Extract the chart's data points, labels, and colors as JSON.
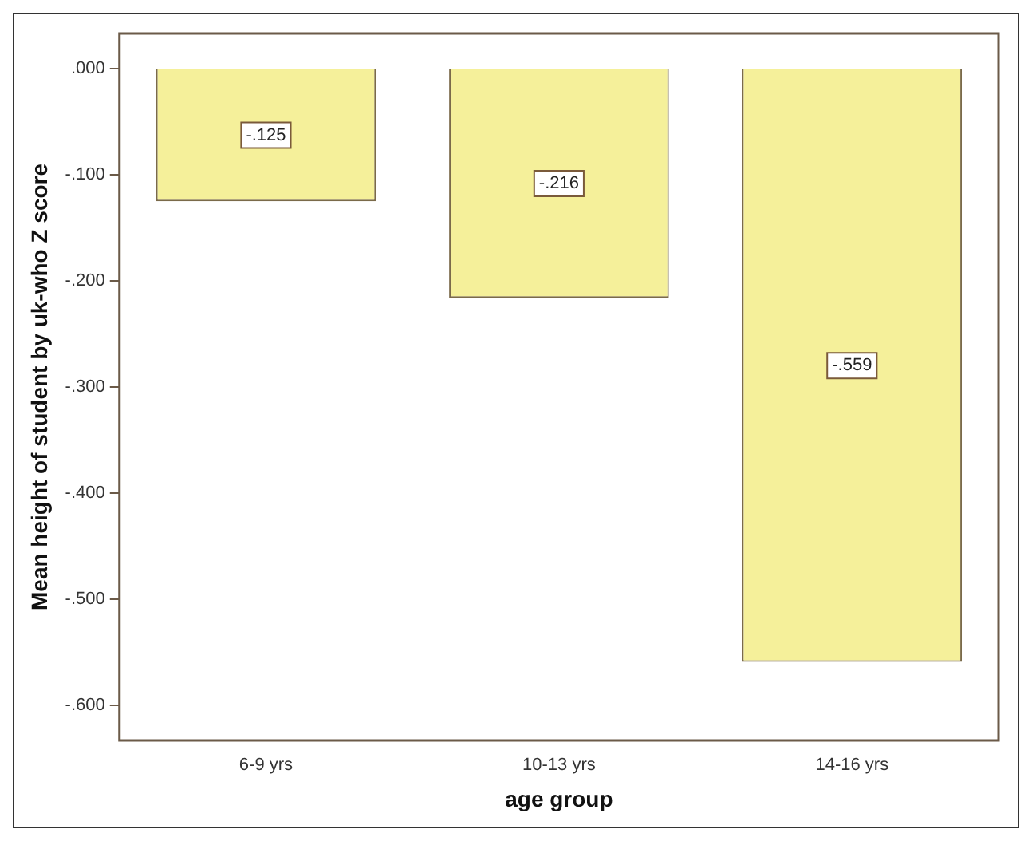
{
  "chart_data": {
    "type": "bar",
    "xlabel": "age group",
    "ylabel": "Mean height of student by uk-who Z score",
    "categories": [
      "6-9 yrs",
      "10-13 yrs",
      "14-16 yrs"
    ],
    "values": [
      -0.125,
      -0.216,
      -0.559
    ],
    "value_labels": [
      "-.125",
      "-.216",
      "-.559"
    ],
    "color": "#f5f09a",
    "ylim": [
      -0.633,
      0.033
    ],
    "yticks": [
      {
        "value": 0,
        "label": ".000"
      },
      {
        "value": -0.1,
        "label": "-.100"
      },
      {
        "value": -0.2,
        "label": "-.200"
      },
      {
        "value": -0.3,
        "label": "-.300"
      },
      {
        "value": -0.4,
        "label": "-.400"
      },
      {
        "value": -0.5,
        "label": "-.500"
      },
      {
        "value": -0.6,
        "label": "-.600"
      }
    ],
    "grid": false,
    "legend": false
  }
}
